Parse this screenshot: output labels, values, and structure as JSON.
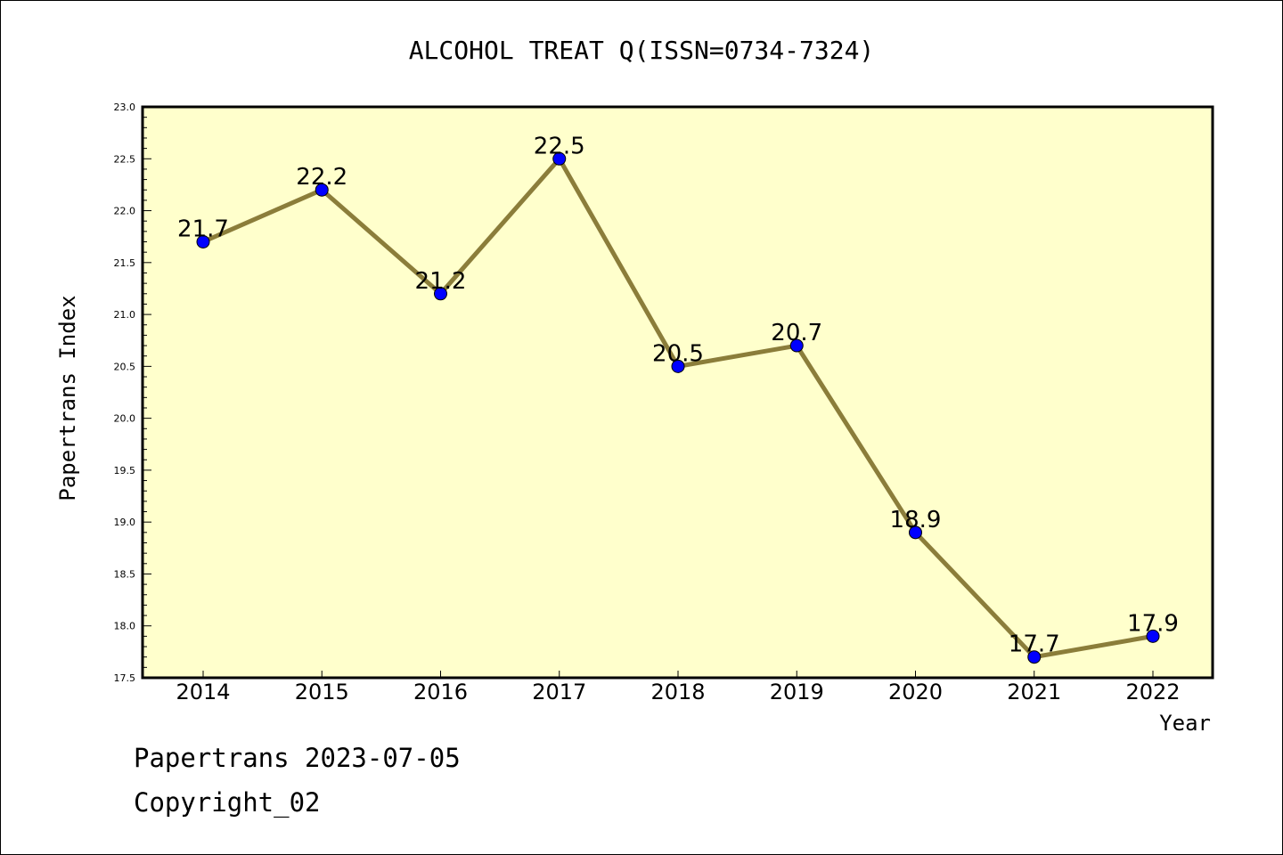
{
  "chart_data": {
    "type": "line",
    "title": "ALCOHOL TREAT Q(ISSN=0734-7324)",
    "xlabel": "Year",
    "ylabel": "Papertrans Index",
    "x": [
      "2014",
      "2015",
      "2016",
      "2017",
      "2018",
      "2019",
      "2020",
      "2021",
      "2022"
    ],
    "data_labels": [
      "21.7",
      "22.2",
      "21.2",
      "22.5",
      "20.5",
      "20.7",
      "18.9",
      "17.7",
      "17.9"
    ],
    "series": [
      {
        "values": [
          21.7,
          22.2,
          21.2,
          22.5,
          20.5,
          20.7,
          18.9,
          17.7,
          17.9
        ]
      }
    ],
    "ylim": [
      17.5,
      23.0
    ],
    "yticks": [
      "17.5",
      "18.0",
      "18.5",
      "19.0",
      "19.5",
      "20.0",
      "20.5",
      "21.0",
      "21.5",
      "22.0",
      "22.5",
      "23.0"
    ],
    "grid": false,
    "colors": {
      "plot_background": "#ffffcc",
      "line": "#8b7d3a",
      "marker": "#0000ff"
    }
  },
  "footer": {
    "line1": "Papertrans 2023-07-05",
    "line2": "Copyright_02"
  }
}
